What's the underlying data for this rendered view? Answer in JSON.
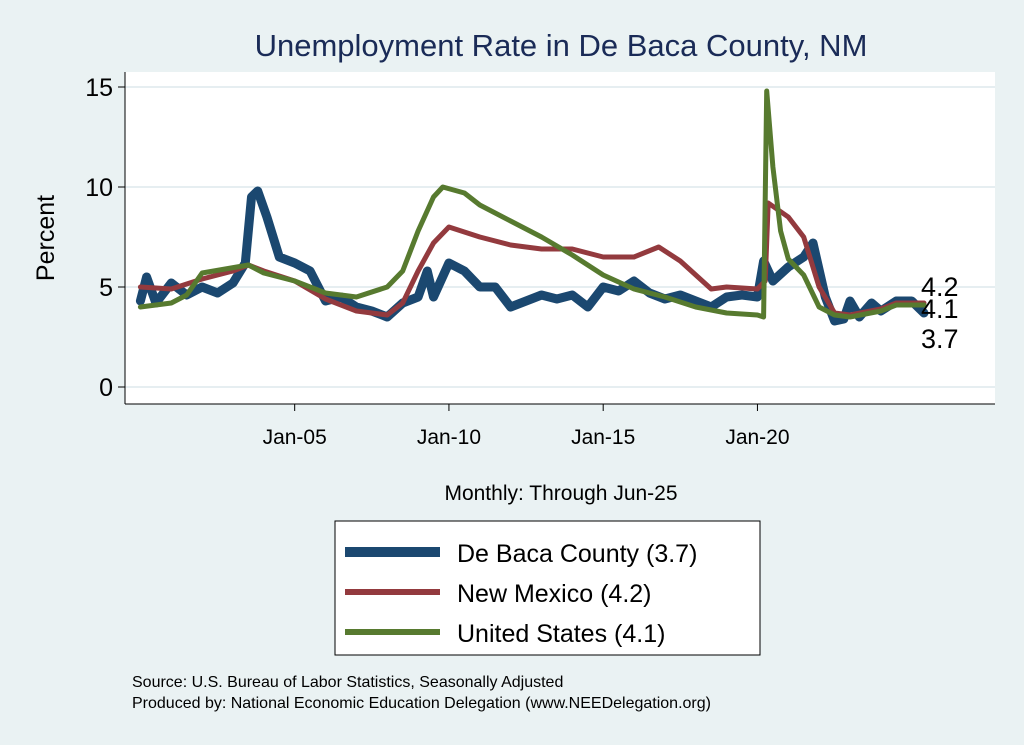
{
  "chart_data": {
    "type": "line",
    "title": "Unemployment Rate in De Baca  County, NM",
    "xlabel": "Monthly: Through Jun-25",
    "ylabel": "Percent",
    "xlim": [
      1999.5,
      2027.7
    ],
    "ylim": [
      -0.85,
      15.75
    ],
    "grid": true,
    "x_ticks": [
      {
        "value": 2005,
        "label": "Jan-05"
      },
      {
        "value": 2010,
        "label": "Jan-10"
      },
      {
        "value": 2015,
        "label": "Jan-15"
      },
      {
        "value": 2020,
        "label": "Jan-20"
      }
    ],
    "y_ticks": [
      {
        "value": 0,
        "label": "0"
      },
      {
        "value": 5,
        "label": "5"
      },
      {
        "value": 10,
        "label": "10"
      },
      {
        "value": 15,
        "label": "15"
      }
    ],
    "legend_placement": "bottom",
    "series": [
      {
        "name": "De Baca  County (3.7)",
        "color": "#1b4870",
        "end_label": "3.7",
        "x": [
          2000,
          2000.2,
          2000.5,
          2001,
          2001.5,
          2002,
          2002.5,
          2003,
          2003.4,
          2003.6,
          2003.8,
          2004.1,
          2004.5,
          2005,
          2005.5,
          2006,
          2006.5,
          2007,
          2007.5,
          2008,
          2008.5,
          2009,
          2009.3,
          2009.5,
          2010,
          2010.5,
          2011,
          2011.5,
          2012,
          2012.5,
          2013,
          2013.5,
          2014,
          2014.5,
          2015,
          2015.5,
          2016,
          2016.5,
          2017,
          2017.5,
          2018,
          2018.5,
          2019,
          2019.5,
          2020,
          2020.2,
          2020.5,
          2021,
          2021.5,
          2021.8,
          2022.2,
          2022.5,
          2022.8,
          2023,
          2023.3,
          2023.7,
          2024,
          2024.5,
          2025,
          2025.4
        ],
        "y": [
          4.3,
          5.5,
          4.2,
          5.2,
          4.6,
          5.0,
          4.7,
          5.2,
          6.2,
          9.5,
          9.8,
          8.5,
          6.5,
          6.2,
          5.8,
          4.3,
          4.5,
          4.0,
          3.8,
          3.5,
          4.2,
          4.5,
          5.8,
          4.5,
          6.2,
          5.8,
          5.0,
          5.0,
          4.0,
          4.3,
          4.6,
          4.4,
          4.6,
          4.0,
          5.0,
          4.8,
          5.3,
          4.7,
          4.4,
          4.6,
          4.3,
          4.0,
          4.5,
          4.6,
          4.5,
          6.3,
          5.3,
          6.0,
          6.5,
          7.2,
          4.5,
          3.3,
          3.4,
          4.3,
          3.5,
          4.2,
          3.8,
          4.3,
          4.3,
          3.7
        ]
      },
      {
        "name": "New Mexico (4.2)",
        "color": "#933a3e",
        "end_label": "4.2",
        "x": [
          2000,
          2001,
          2002,
          2003,
          2003.5,
          2004,
          2005,
          2006,
          2007,
          2008,
          2008.5,
          2009,
          2009.5,
          2010,
          2011,
          2012,
          2013,
          2014,
          2015,
          2016,
          2016.8,
          2017.5,
          2018.5,
          2019,
          2020,
          2020.25,
          2020.35,
          2021,
          2021.5,
          2022,
          2022.5,
          2023,
          2024,
          2024.5,
          2025.4
        ],
        "y": [
          5.0,
          4.9,
          5.4,
          5.8,
          6.1,
          5.8,
          5.3,
          4.4,
          3.8,
          3.6,
          4.2,
          5.8,
          7.2,
          8.0,
          7.5,
          7.1,
          6.9,
          6.9,
          6.5,
          6.5,
          7.0,
          6.3,
          4.9,
          5.0,
          4.9,
          5.3,
          9.2,
          8.5,
          7.5,
          5.0,
          3.7,
          3.6,
          3.9,
          4.2,
          4.2
        ]
      },
      {
        "name": "United States (4.1)",
        "color": "#577a2f",
        "end_label": "4.1",
        "x": [
          2000,
          2001,
          2001.5,
          2002,
          2003.5,
          2004,
          2005,
          2006,
          2007,
          2008,
          2008.5,
          2009,
          2009.5,
          2009.8,
          2010.5,
          2011,
          2012,
          2013,
          2014,
          2015,
          2016,
          2017,
          2018,
          2019,
          2020,
          2020.2,
          2020.3,
          2020.5,
          2020.75,
          2021,
          2021.5,
          2022,
          2022.5,
          2023,
          2024,
          2024.5,
          2025.4
        ],
        "y": [
          4.0,
          4.2,
          4.6,
          5.7,
          6.1,
          5.7,
          5.3,
          4.7,
          4.5,
          5.0,
          5.8,
          7.8,
          9.5,
          10.0,
          9.7,
          9.1,
          8.3,
          7.5,
          6.6,
          5.6,
          4.9,
          4.5,
          4.0,
          3.7,
          3.6,
          3.5,
          14.8,
          11.0,
          7.8,
          6.4,
          5.6,
          4.0,
          3.6,
          3.5,
          3.8,
          4.1,
          4.1
        ]
      }
    ]
  },
  "notes": {
    "source": "Source: U.S. Bureau of Labor Statistics, Seasonally Adjusted",
    "produced_by": "Produced by: National Economic Education Delegation (www.NEEDelegation.org)"
  }
}
